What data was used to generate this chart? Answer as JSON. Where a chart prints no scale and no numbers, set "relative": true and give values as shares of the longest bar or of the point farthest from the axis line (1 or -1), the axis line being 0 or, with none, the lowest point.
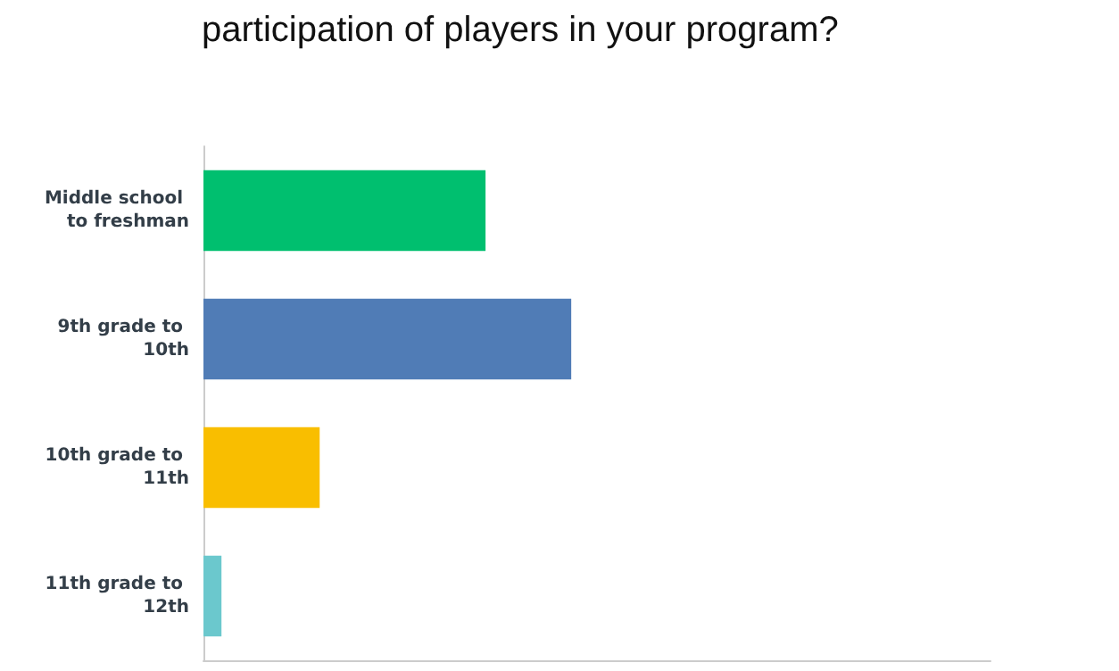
{
  "chart_data": {
    "type": "bar",
    "orientation": "horizontal",
    "relative": true,
    "title": "participation of players in your program?",
    "categories": [
      "Middle school to freshman",
      "9th grade to 10th",
      "10th grade to 11th",
      "11th grade to 12th"
    ],
    "values": [
      0.767,
      1,
      0.316,
      0.049
    ],
    "colors": [
      "#00bf6f",
      "#507cb6",
      "#f9be00",
      "#6bc8cd"
    ],
    "grid": false
  }
}
